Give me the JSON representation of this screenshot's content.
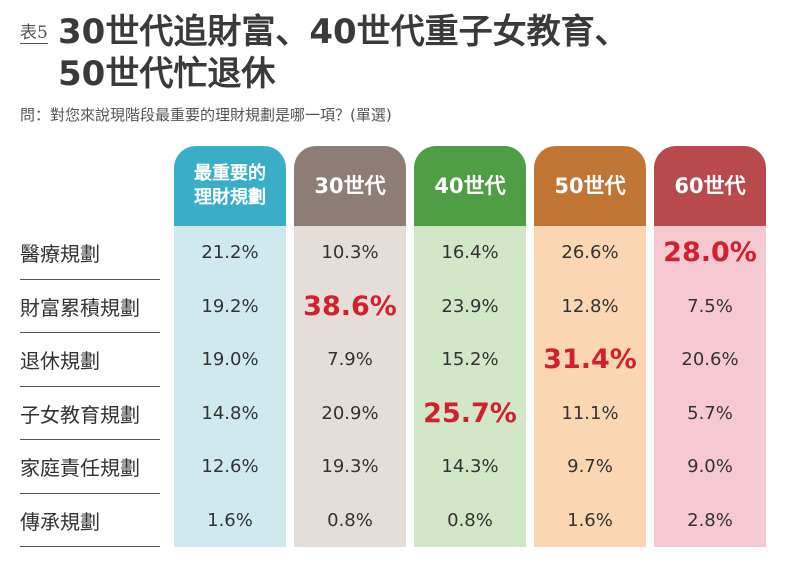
{
  "header": {
    "table_label": "表5",
    "title_line1": "30世代追財富、40世代重子女教育、",
    "title_line2": "50世代忙退休",
    "question": "問：對您來說現階段最重要的理財規劃是哪一項？(單選)"
  },
  "columns": [
    {
      "label": "最重要的\n理財規劃",
      "head_color": "#3aaec7",
      "body_color": "#cfe9ef"
    },
    {
      "label": "30世代",
      "head_color": "#8e7d74",
      "body_color": "#e4ddd8"
    },
    {
      "label": "40世代",
      "head_color": "#4f9d45",
      "body_color": "#d2e6c8"
    },
    {
      "label": "50世代",
      "head_color": "#c07535",
      "body_color": "#fad6b2"
    },
    {
      "label": "60世代",
      "head_color": "#b84a4d",
      "body_color": "#f6c9d2"
    }
  ],
  "rows": [
    {
      "label": "醫療規劃",
      "values": [
        "21.2%",
        "10.3%",
        "16.4%",
        "26.6%",
        "28.0%"
      ],
      "highlight": 4
    },
    {
      "label": "財富累積規劃",
      "values": [
        "19.2%",
        "38.6%",
        "23.9%",
        "12.8%",
        "7.5%"
      ],
      "highlight": 1
    },
    {
      "label": "退休規劃",
      "values": [
        "19.0%",
        "7.9%",
        "15.2%",
        "31.4%",
        "20.6%"
      ],
      "highlight": 3
    },
    {
      "label": "子女教育規劃",
      "values": [
        "14.8%",
        "20.9%",
        "25.7%",
        "11.1%",
        "5.7%"
      ],
      "highlight": 2
    },
    {
      "label": "家庭責任規劃",
      "values": [
        "12.6%",
        "19.3%",
        "14.3%",
        "9.7%",
        "9.0%"
      ],
      "highlight": -1
    },
    {
      "label": "傳承規劃",
      "values": [
        "1.6%",
        "0.8%",
        "0.8%",
        "1.6%",
        "2.8%"
      ],
      "highlight": -1
    }
  ],
  "colors": {
    "highlight_text": "#d1202f"
  }
}
